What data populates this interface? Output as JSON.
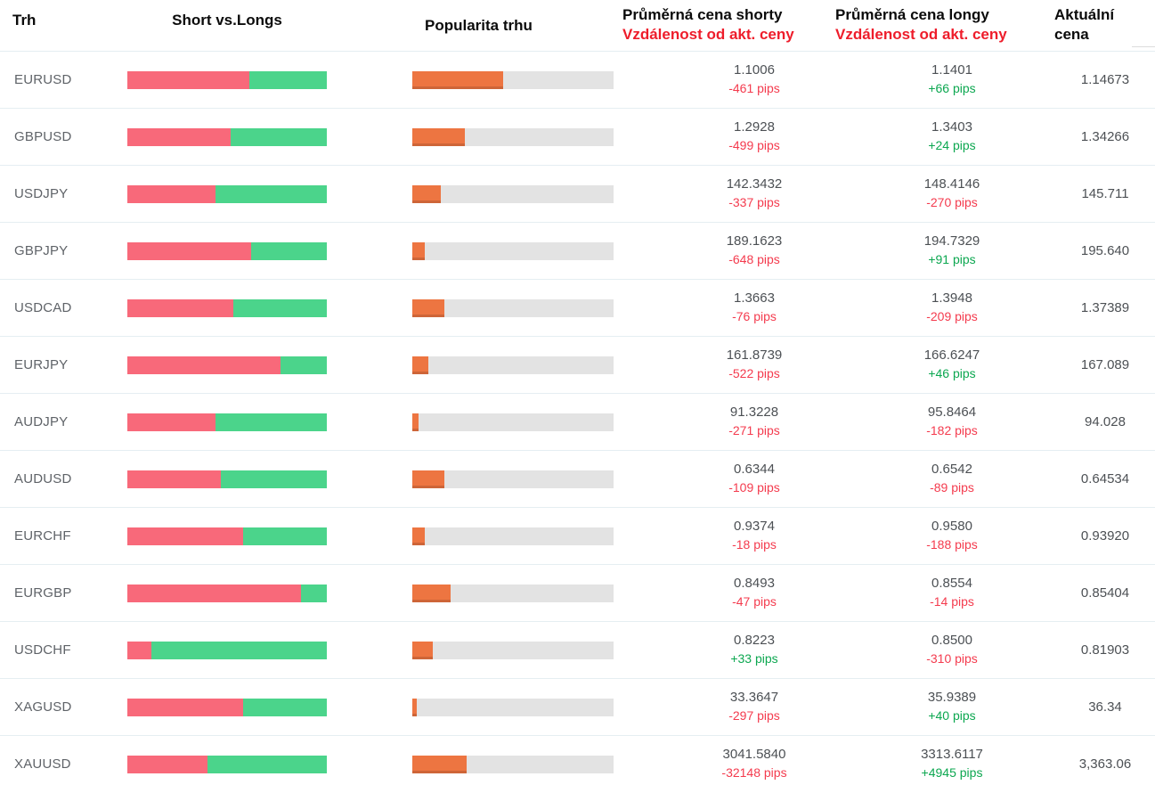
{
  "header": {
    "market": "Trh",
    "short_vs_longs": "Short vs.Longs",
    "popularity": "Popularita trhu",
    "shorts_title": "Průměrná cena shorty",
    "shorts_subtitle": "Vzdálenost od akt. ceny",
    "longs_title": "Průměrná cena longy",
    "longs_subtitle": "Vzdálenost od akt. ceny",
    "current_line1": "Aktuální",
    "current_line2": "cena"
  },
  "colors": {
    "shorts_bar": "#f8697a",
    "longs_bar": "#4bd48b",
    "popularity_bar": "#ed7541",
    "popularity_track": "#e3e3e3",
    "pips_negative": "#f43b4e",
    "pips_positive": "#0ca750",
    "header_accent_red": "#ee1d2b",
    "row_separator": "#e5eef2"
  },
  "rows": [
    {
      "symbol": "EURUSD",
      "short_pct": 61,
      "popularity_pct": 45,
      "short_price": "1.1006",
      "short_pips": "-461 pips",
      "short_dir": "neg",
      "long_price": "1.1401",
      "long_pips": "+66 pips",
      "long_dir": "pos",
      "current": "1.14673"
    },
    {
      "symbol": "GBPUSD",
      "short_pct": 52,
      "popularity_pct": 26,
      "short_price": "1.2928",
      "short_pips": "-499 pips",
      "short_dir": "neg",
      "long_price": "1.3403",
      "long_pips": "+24 pips",
      "long_dir": "pos",
      "current": "1.34266"
    },
    {
      "symbol": "USDJPY",
      "short_pct": 44,
      "popularity_pct": 14,
      "short_price": "142.3432",
      "short_pips": "-337 pips",
      "short_dir": "neg",
      "long_price": "148.4146",
      "long_pips": "-270 pips",
      "long_dir": "neg",
      "current": "145.711"
    },
    {
      "symbol": "GBPJPY",
      "short_pct": 62,
      "popularity_pct": 6,
      "short_price": "189.1623",
      "short_pips": "-648 pips",
      "short_dir": "neg",
      "long_price": "194.7329",
      "long_pips": "+91 pips",
      "long_dir": "pos",
      "current": "195.640"
    },
    {
      "symbol": "USDCAD",
      "short_pct": 53,
      "popularity_pct": 16,
      "short_price": "1.3663",
      "short_pips": "-76 pips",
      "short_dir": "neg",
      "long_price": "1.3948",
      "long_pips": "-209 pips",
      "long_dir": "neg",
      "current": "1.37389"
    },
    {
      "symbol": "EURJPY",
      "short_pct": 77,
      "popularity_pct": 8,
      "short_price": "161.8739",
      "short_pips": "-522 pips",
      "short_dir": "neg",
      "long_price": "166.6247",
      "long_pips": "+46 pips",
      "long_dir": "pos",
      "current": "167.089"
    },
    {
      "symbol": "AUDJPY",
      "short_pct": 44,
      "popularity_pct": 3,
      "short_price": "91.3228",
      "short_pips": "-271 pips",
      "short_dir": "neg",
      "long_price": "95.8464",
      "long_pips": "-182 pips",
      "long_dir": "neg",
      "current": "94.028"
    },
    {
      "symbol": "AUDUSD",
      "short_pct": 47,
      "popularity_pct": 16,
      "short_price": "0.6344",
      "short_pips": "-109 pips",
      "short_dir": "neg",
      "long_price": "0.6542",
      "long_pips": "-89 pips",
      "long_dir": "neg",
      "current": "0.64534"
    },
    {
      "symbol": "EURCHF",
      "short_pct": 58,
      "popularity_pct": 6,
      "short_price": "0.9374",
      "short_pips": "-18 pips",
      "short_dir": "neg",
      "long_price": "0.9580",
      "long_pips": "-188 pips",
      "long_dir": "neg",
      "current": "0.93920"
    },
    {
      "symbol": "EURGBP",
      "short_pct": 87,
      "popularity_pct": 19,
      "short_price": "0.8493",
      "short_pips": "-47 pips",
      "short_dir": "neg",
      "long_price": "0.8554",
      "long_pips": "-14 pips",
      "long_dir": "neg",
      "current": "0.85404"
    },
    {
      "symbol": "USDCHF",
      "short_pct": 12,
      "popularity_pct": 10,
      "short_price": "0.8223",
      "short_pips": "+33 pips",
      "short_dir": "pos",
      "long_price": "0.8500",
      "long_pips": "-310 pips",
      "long_dir": "neg",
      "current": "0.81903"
    },
    {
      "symbol": "XAGUSD",
      "short_pct": 58,
      "popularity_pct": 2,
      "short_price": "33.3647",
      "short_pips": "-297 pips",
      "short_dir": "neg",
      "long_price": "35.9389",
      "long_pips": "+40 pips",
      "long_dir": "pos",
      "current": "36.34"
    },
    {
      "symbol": "XAUUSD",
      "short_pct": 40,
      "popularity_pct": 27,
      "short_price": "3041.5840",
      "short_pips": "-32148 pips",
      "short_dir": "neg",
      "long_price": "3313.6117",
      "long_pips": "+4945 pips",
      "long_dir": "pos",
      "current": "3,363.06"
    }
  ]
}
